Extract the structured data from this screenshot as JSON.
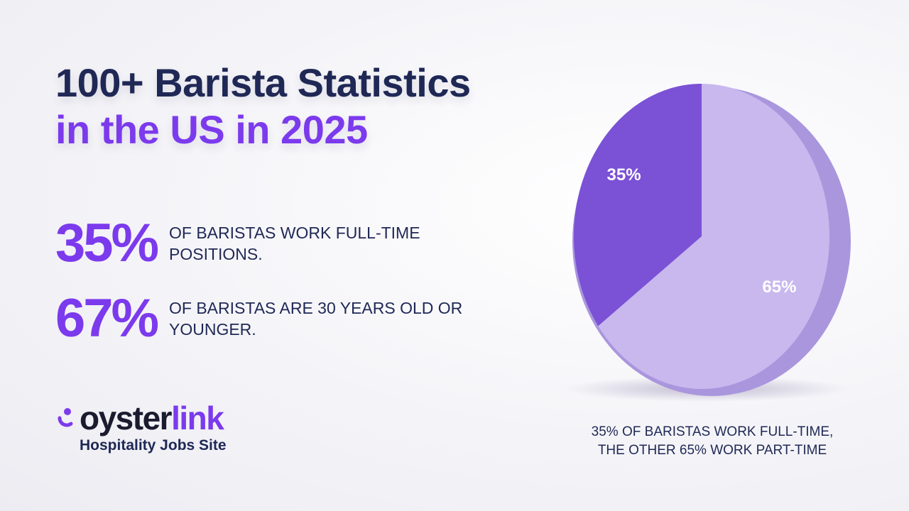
{
  "title": {
    "line1": "100+ Barista Statistics",
    "line2": "in the US in 2025"
  },
  "stats": [
    {
      "value": "35%",
      "text": "OF BARISTAS WORK FULL-TIME POSITIONS."
    },
    {
      "value": "67%",
      "text": "OF BARISTAS ARE 30 YEARS OLD OR YOUNGER."
    }
  ],
  "brand": {
    "logo_part1": "oyster",
    "logo_part2": "link",
    "tagline": "Hospitality Jobs Site",
    "icon": "oysterlink-logo-icon"
  },
  "colors": {
    "navy": "#1f2855",
    "accent": "#7c3aed",
    "slice_fulltime": "#7b51d6",
    "slice_parttime": "#c8b8ee"
  },
  "chart_data": {
    "type": "pie",
    "categories": [
      "Full-time",
      "Part-time"
    ],
    "values": [
      35,
      65
    ],
    "data_labels": [
      "35%",
      "65%"
    ],
    "slice_colors": [
      "#7b51d6",
      "#c8b8ee"
    ],
    "caption_line1": "35% OF BARISTAS WORK FULL-TIME,",
    "caption_line2": "THE OTHER 65% WORK PART-TIME"
  }
}
